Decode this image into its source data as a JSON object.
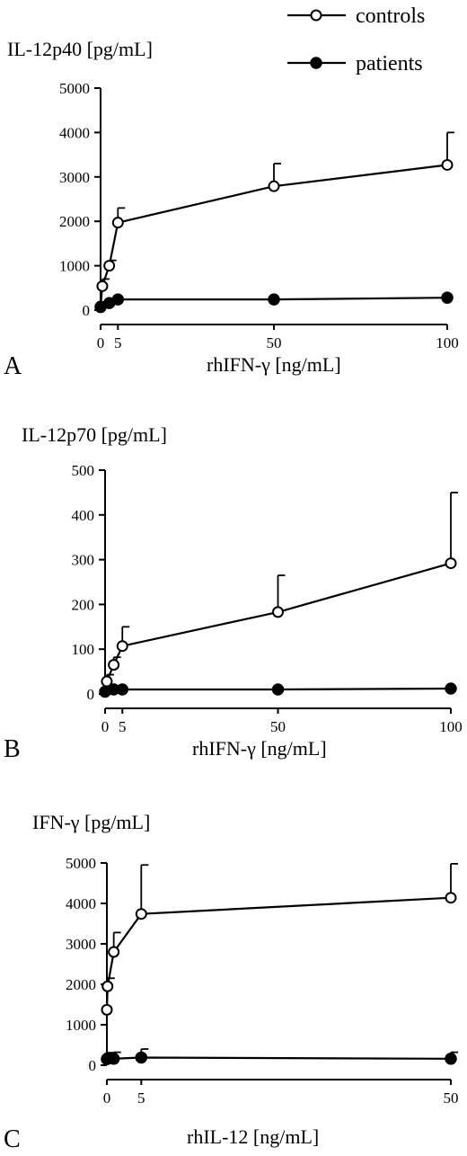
{
  "legend": [
    {
      "name": "controls",
      "marker": "open-circle"
    },
    {
      "name": "patients",
      "marker": "filled-circle"
    }
  ],
  "colors": {
    "ink": "#000000",
    "background": "#ffffff"
  },
  "chart_data": [
    {
      "panel_label": "A",
      "type": "line",
      "title": "",
      "ylabel": "IL-12p40 [pg/mL]",
      "xlabel": "rhIFN-γ [ng/mL]",
      "xlim": [
        0,
        100
      ],
      "ylim": [
        0,
        5000
      ],
      "xticks": [
        0,
        5,
        50,
        100
      ],
      "yticks": [
        0,
        1000,
        2000,
        3000,
        4000,
        5000
      ],
      "series": [
        {
          "name": "controls",
          "marker": "open-circle",
          "x": [
            0,
            0.5,
            2.5,
            5,
            50,
            100
          ],
          "y": [
            80,
            540,
            1000,
            1970,
            2790,
            3270
          ],
          "error_upper": [
            null,
            700,
            1120,
            2300,
            3300,
            4000
          ]
        },
        {
          "name": "patients",
          "marker": "filled-circle",
          "x": [
            0,
            2.5,
            5,
            50,
            100
          ],
          "y": [
            70,
            160,
            240,
            240,
            280
          ],
          "error_upper": [
            null,
            null,
            null,
            null,
            null
          ]
        }
      ]
    },
    {
      "panel_label": "B",
      "type": "line",
      "title": "",
      "ylabel": "IL-12p70  [pg/mL]",
      "xlabel": "rhIFN-γ [ng/mL]",
      "xlim": [
        0,
        100
      ],
      "ylim": [
        0,
        500
      ],
      "xticks": [
        0,
        5,
        50,
        100
      ],
      "yticks": [
        0,
        100,
        200,
        300,
        400,
        500
      ],
      "series": [
        {
          "name": "controls",
          "marker": "open-circle",
          "x": [
            0,
            0.5,
            2.5,
            5,
            50,
            100
          ],
          "y": [
            5,
            28,
            65,
            107,
            183,
            292
          ],
          "error_upper": [
            null,
            43,
            82,
            150,
            265,
            450
          ]
        },
        {
          "name": "patients",
          "marker": "filled-circle",
          "x": [
            0,
            2.5,
            5,
            50,
            100
          ],
          "y": [
            5,
            10,
            10,
            10,
            12
          ],
          "error_upper": [
            null,
            null,
            null,
            null,
            null
          ]
        }
      ]
    },
    {
      "panel_label": "C",
      "type": "line",
      "title": "",
      "ylabel": "IFN-γ  [pg/mL]",
      "xlabel": "rhIL-12 [ng/mL]",
      "xlim": [
        0,
        50
      ],
      "ylim": [
        0,
        5000
      ],
      "xticks": [
        0,
        5,
        50
      ],
      "yticks": [
        0,
        1000,
        2000,
        3000,
        4000,
        5000
      ],
      "series": [
        {
          "name": "controls",
          "marker": "open-circle",
          "x": [
            0,
            0.1,
            1,
            5,
            50
          ],
          "y": [
            1370,
            1950,
            2800,
            3740,
            4140
          ],
          "error_upper": [
            null,
            2150,
            3280,
            4950,
            4980
          ]
        },
        {
          "name": "patients",
          "marker": "filled-circle",
          "x": [
            0,
            0.1,
            1,
            5,
            50
          ],
          "y": [
            150,
            170,
            160,
            190,
            160
          ],
          "error_upper": [
            300,
            310,
            320,
            400,
            320
          ]
        }
      ]
    }
  ]
}
